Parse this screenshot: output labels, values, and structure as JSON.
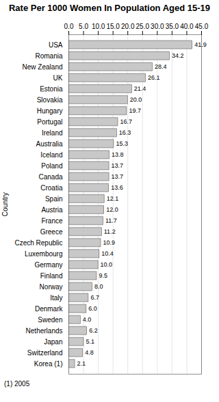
{
  "chart_data": {
    "type": "bar",
    "orientation": "horizontal",
    "title": "Rate Per 1000 Women In Population Aged 15-19",
    "y_label": "Country",
    "annotations": [
      "(1) 2005"
    ],
    "categories": [
      "USA",
      "Romania",
      "New Zealand",
      "UK",
      "Estonia",
      "Slovakia",
      "Hungary",
      "Portugal",
      "Ireland",
      "Australia",
      "Iceland",
      "Poland",
      "Canada",
      "Croatia",
      "Spain",
      "Austria",
      "France",
      "Greece",
      "Czech Republic",
      "Luxembourg",
      "Germany",
      "Finland",
      "Norway",
      "Italy",
      "Denmark",
      "Sweden",
      "Netherlands",
      "Japan",
      "Switzerland",
      "Korea (1)"
    ],
    "values": [
      41.9,
      34.2,
      28.4,
      26.1,
      21.4,
      20.0,
      19.7,
      16.7,
      16.3,
      15.3,
      13.8,
      13.7,
      13.7,
      13.6,
      12.1,
      12.0,
      11.7,
      11.2,
      10.9,
      10.4,
      10.0,
      9.5,
      8.0,
      6.7,
      6.0,
      4.0,
      6.2,
      5.1,
      4.8,
      2.1
    ],
    "value_labels": [
      "41.9",
      "34.2",
      "28.4",
      "26.1",
      "21.4",
      "20.0",
      "19.7",
      "16.7",
      "16.3",
      "15.3",
      "13.8",
      "13.7",
      "13.7",
      "13.6",
      "12.1",
      "12.0",
      "11.7",
      "11.2",
      "10.9",
      "10.4",
      "10.0",
      "9.5",
      "8.0",
      "6.7",
      "6.0",
      "4.0",
      "6.2",
      "5.1",
      "4.8",
      "2.1"
    ],
    "data_labels": true,
    "color": "#c8c8c8",
    "xlim": [
      0,
      45
    ],
    "xticks": [
      {
        "value": 0,
        "label": "0.0"
      },
      {
        "value": 5,
        "label": "5.0"
      },
      {
        "value": 10,
        "label": "10.0"
      },
      {
        "value": 15,
        "label": "15.0"
      },
      {
        "value": 20,
        "label": "20.0"
      },
      {
        "value": 25,
        "label": "25.0"
      },
      {
        "value": 30,
        "label": "30.0"
      },
      {
        "value": 35,
        "label": "35.0"
      },
      {
        "value": 40,
        "label": "40.0"
      },
      {
        "value": 45,
        "label": "45.0"
      }
    ],
    "grid": true
  }
}
